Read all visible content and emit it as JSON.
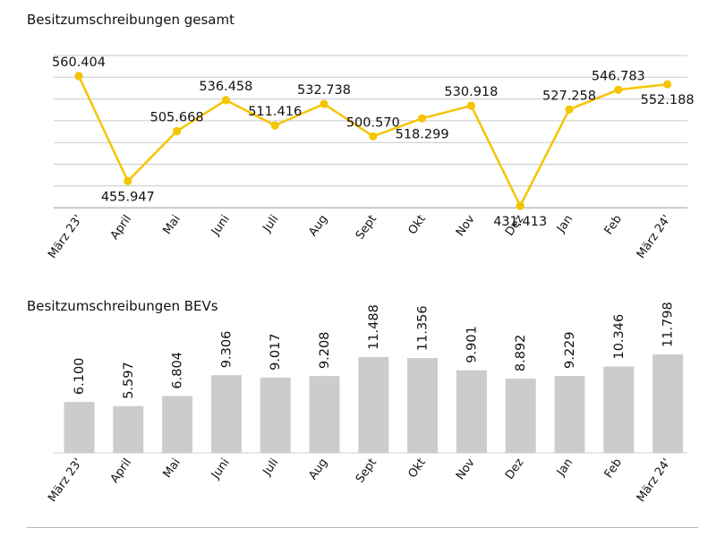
{
  "chart_data": [
    {
      "type": "line",
      "title": "Besitzumschreibungen gesamt",
      "categories": [
        "März 23'",
        "April",
        "Mai",
        "Juni",
        "Juli",
        "Aug",
        "Sept",
        "Okt",
        "Nov",
        "Dez",
        "Jan",
        "Feb",
        "März 24'"
      ],
      "values": [
        560404,
        455947,
        505668,
        536458,
        511416,
        532738,
        500570,
        518299,
        530918,
        431413,
        527258,
        546783,
        552188
      ],
      "labels": [
        "560.404",
        "455.947",
        "505.668",
        "536.458",
        "511.416",
        "532.738",
        "500.570",
        "518.299",
        "530.918",
        "431.413",
        "527.258",
        "546.783",
        "552.188"
      ],
      "label_position": [
        "above",
        "below",
        "above",
        "above",
        "above",
        "above",
        "above",
        "below",
        "above",
        "below",
        "above",
        "above",
        "below"
      ],
      "grid": true,
      "color": "#f5c400"
    },
    {
      "type": "bar",
      "title": "Besitzumschreibungen BEVs",
      "categories": [
        "März 23'",
        "April",
        "Mai",
        "Juni",
        "Juli",
        "Aug",
        "Sept",
        "Okt",
        "Nov",
        "Dez",
        "Jan",
        "Feb",
        "März 24'"
      ],
      "values": [
        6100,
        5597,
        6804,
        9306,
        9017,
        9208,
        11488,
        11356,
        9901,
        8892,
        9229,
        10346,
        11798
      ],
      "labels": [
        "6.100",
        "5.597",
        "6.804",
        "9.306",
        "9.017",
        "9.208",
        "11.488",
        "11.356",
        "9.901",
        "8.892",
        "9.229",
        "10.346",
        "11.798"
      ],
      "grid": false,
      "color": "#cccccc"
    }
  ]
}
